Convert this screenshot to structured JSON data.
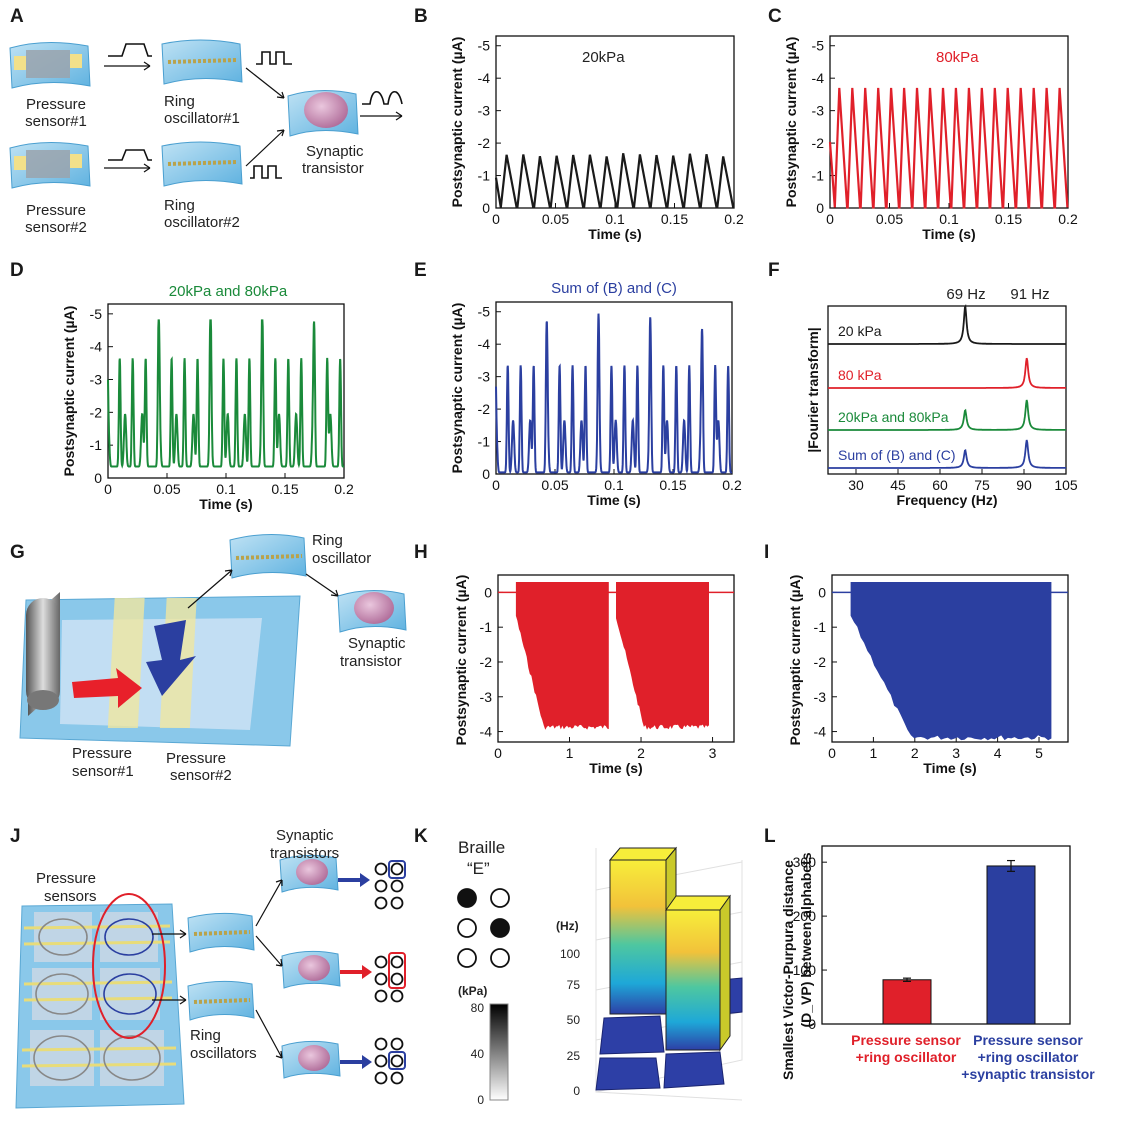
{
  "colors": {
    "black": "#1a1a1a",
    "red": "#e0202a",
    "green": "#1a8a3a",
    "blue": "#2b3fa0",
    "yellow": "#f7ee3a"
  },
  "panels": {
    "A": {
      "letter": "A",
      "labels": [
        "Pressure",
        "sensor#1",
        "Ring",
        "oscillator#1",
        "Synaptic",
        "transistor",
        "Pressure",
        "sensor#2",
        "Ring",
        "oscillator#2"
      ]
    },
    "B": {
      "letter": "B",
      "annotation": "20kPa"
    },
    "C": {
      "letter": "C",
      "annotation": "80kPa"
    },
    "D": {
      "letter": "D",
      "title": "20kPa and 80kPa"
    },
    "E": {
      "letter": "E",
      "title": "Sum of (B) and (C)"
    },
    "F": {
      "letter": "F",
      "peaks": [
        "69 Hz",
        "91 Hz"
      ],
      "traces": [
        "20 kPa",
        "80 kPa",
        "20kPa and 80kPa",
        "Sum of (B) and (C)"
      ],
      "ylabel": "|Fourier transform|",
      "xlabel": "Frequency (Hz)"
    },
    "G": {
      "letter": "G",
      "labels": [
        "Ring",
        "oscillator",
        "Synaptic",
        "transistor",
        "Pressure",
        "sensor#1",
        "Pressure",
        "sensor#2"
      ]
    },
    "H": {
      "letter": "H"
    },
    "I": {
      "letter": "I"
    },
    "J": {
      "letter": "J",
      "labels": [
        "Pressure",
        "sensors",
        "Synaptic",
        "transistors",
        "Ring",
        "oscillators"
      ]
    },
    "K": {
      "letter": "K",
      "braille": "Braille",
      "braille_letter": "“E”",
      "kpa_label": "(kPa)",
      "kpa_ticks": [
        "80",
        "40",
        "0"
      ],
      "hz_label": "(Hz)",
      "hz_ticks": [
        "100",
        "75",
        "50",
        "25",
        "0"
      ]
    },
    "L": {
      "letter": "L"
    }
  },
  "axis_common": {
    "postsyn_ylabel": "Postsynaptic current (µA)",
    "time_xlabel": "Time (s)"
  },
  "chart_data": [
    {
      "id": "B",
      "type": "line",
      "xlabel": "Time (s)",
      "ylabel": "Postsynaptic current (µA)",
      "xlim": [
        0,
        0.2
      ],
      "ylim": [
        0,
        -5.3
      ],
      "x_ticks": [
        "0",
        "0.05",
        "0.1",
        "0.15",
        "0.2"
      ],
      "y_ticks": [
        "0",
        "-1",
        "-2",
        "-3",
        "-4",
        "-5"
      ],
      "series": [
        {
          "color": "#1a1a1a",
          "peak": -1.7,
          "pulses": 14
        }
      ]
    },
    {
      "id": "C",
      "type": "line",
      "xlabel": "Time (s)",
      "ylabel": "Postsynaptic current (µA)",
      "xlim": [
        0,
        0.2
      ],
      "ylim": [
        0,
        -5.3
      ],
      "x_ticks": [
        "0",
        "0.05",
        "0.1",
        "0.15",
        "0.2"
      ],
      "y_ticks": [
        "0",
        "-1",
        "-2",
        "-3",
        "-4",
        "-5"
      ],
      "series": [
        {
          "color": "#e0202a",
          "peak": -3.7,
          "pulses": 18
        }
      ]
    },
    {
      "id": "D",
      "type": "line",
      "xlabel": "Time (s)",
      "ylabel": "Postsynaptic current (µA)",
      "xlim": [
        0,
        0.2
      ],
      "ylim": [
        0,
        -5.3
      ],
      "x_ticks": [
        "0",
        "0.05",
        "0.1",
        "0.15",
        "0.2"
      ],
      "y_ticks": [
        "0",
        "-1",
        "-2",
        "-3",
        "-4",
        "-5"
      ],
      "series": [
        {
          "name": "20kPa and 80kPa",
          "color": "#1a8a3a",
          "peak": -4.8
        }
      ]
    },
    {
      "id": "E",
      "type": "line",
      "xlabel": "Time (s)",
      "ylabel": "Postsynaptic current (µA)",
      "xlim": [
        0,
        0.2
      ],
      "ylim": [
        0,
        -5.3
      ],
      "x_ticks": [
        "0",
        "0.05",
        "0.1",
        "0.15",
        "0.2"
      ],
      "y_ticks": [
        "0",
        "-1",
        "-2",
        "-3",
        "-4",
        "-5"
      ],
      "series": [
        {
          "name": "Sum of (B) and (C)",
          "color": "#2b3fa0",
          "peak": -5.2
        }
      ]
    },
    {
      "id": "F",
      "type": "line",
      "xlabel": "Frequency (Hz)",
      "ylabel": "|Fourier transform|",
      "xlim": [
        20,
        105
      ],
      "x_ticks": [
        "30",
        "45",
        "60",
        "75",
        "90",
        "105"
      ],
      "series": [
        {
          "name": "20 kPa",
          "color": "#1a1a1a",
          "peaks_hz": [
            69
          ]
        },
        {
          "name": "80 kPa",
          "color": "#e0202a",
          "peaks_hz": [
            91
          ]
        },
        {
          "name": "20kPa and 80kPa",
          "color": "#1a8a3a",
          "peaks_hz": [
            69,
            91
          ]
        },
        {
          "name": "Sum of (B) and (C)",
          "color": "#2b3fa0",
          "peaks_hz": [
            69,
            91
          ]
        }
      ]
    },
    {
      "id": "H",
      "type": "area",
      "xlabel": "Time (s)",
      "ylabel": "Postsynaptic current (µA)",
      "xlim": [
        0,
        3.3
      ],
      "ylim": [
        -4.3,
        0.5
      ],
      "x_ticks": [
        "0",
        "1",
        "2",
        "3"
      ],
      "y_ticks": [
        "0",
        "-1",
        "-2",
        "-3",
        "-4"
      ],
      "series": [
        {
          "color": "#e0202a",
          "bursts": [
            [
              0.25,
              1.55
            ],
            [
              1.65,
              2.95
            ]
          ],
          "min": -3.8
        }
      ]
    },
    {
      "id": "I",
      "type": "area",
      "xlabel": "Time (s)",
      "ylabel": "Postsynaptic current (µA)",
      "xlim": [
        0,
        5.7
      ],
      "ylim": [
        -4.3,
        0.5
      ],
      "x_ticks": [
        "0",
        "1",
        "2",
        "3",
        "4",
        "5"
      ],
      "y_ticks": [
        "0",
        "-1",
        "-2",
        "-3",
        "-4"
      ],
      "series": [
        {
          "color": "#2b3fa0",
          "bursts": [
            [
              0.45,
              5.3
            ]
          ],
          "min": -4.1
        }
      ]
    },
    {
      "id": "L",
      "type": "bar",
      "ylabel": "Smallest Victor-Purpura distance (D_VP) between alphabets",
      "ylim": [
        0,
        330
      ],
      "y_ticks": [
        "0",
        "100",
        "200",
        "300"
      ],
      "categories": [
        "Pressure sensor +ring oscillator",
        "Pressure sensor +ring oscillator +synaptic transistor"
      ],
      "category_lines": [
        [
          "Pressure sensor",
          "+ring oscillator"
        ],
        [
          "Pressure sensor",
          "+ring oscillator",
          "+synaptic transistor"
        ]
      ],
      "values": [
        82,
        293
      ],
      "errors": [
        3,
        10
      ],
      "colors": [
        "#e0202a",
        "#2b3fa0"
      ]
    }
  ]
}
